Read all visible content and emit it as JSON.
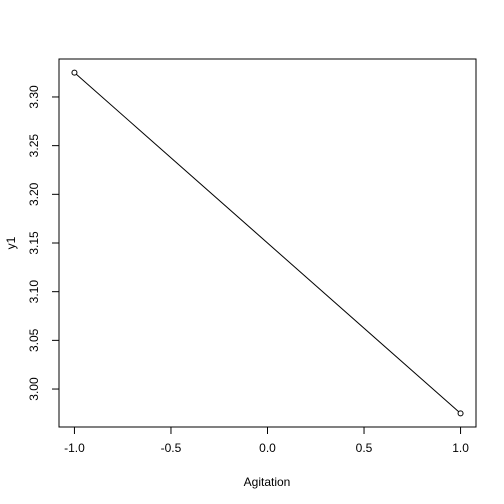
{
  "chart_data": {
    "type": "line",
    "xlabel": "Agitation",
    "ylabel": "y1",
    "x": [
      -1.0,
      1.0
    ],
    "y": [
      3.325,
      2.975
    ],
    "xlim": [
      -1.08,
      1.08
    ],
    "ylim": [
      2.961,
      3.339
    ],
    "xticks": [
      -1.0,
      -0.5,
      0.0,
      0.5,
      1.0
    ],
    "xtick_labels": [
      "-1.0",
      "-0.5",
      "0.0",
      "0.5",
      "1.0"
    ],
    "yticks": [
      3.0,
      3.05,
      3.1,
      3.15,
      3.2,
      3.25,
      3.3
    ],
    "ytick_labels": [
      "3.00",
      "3.05",
      "3.10",
      "3.15",
      "3.20",
      "3.25",
      "3.30"
    ],
    "markers": "open-circle",
    "grid": false,
    "line_color": "#000000"
  }
}
